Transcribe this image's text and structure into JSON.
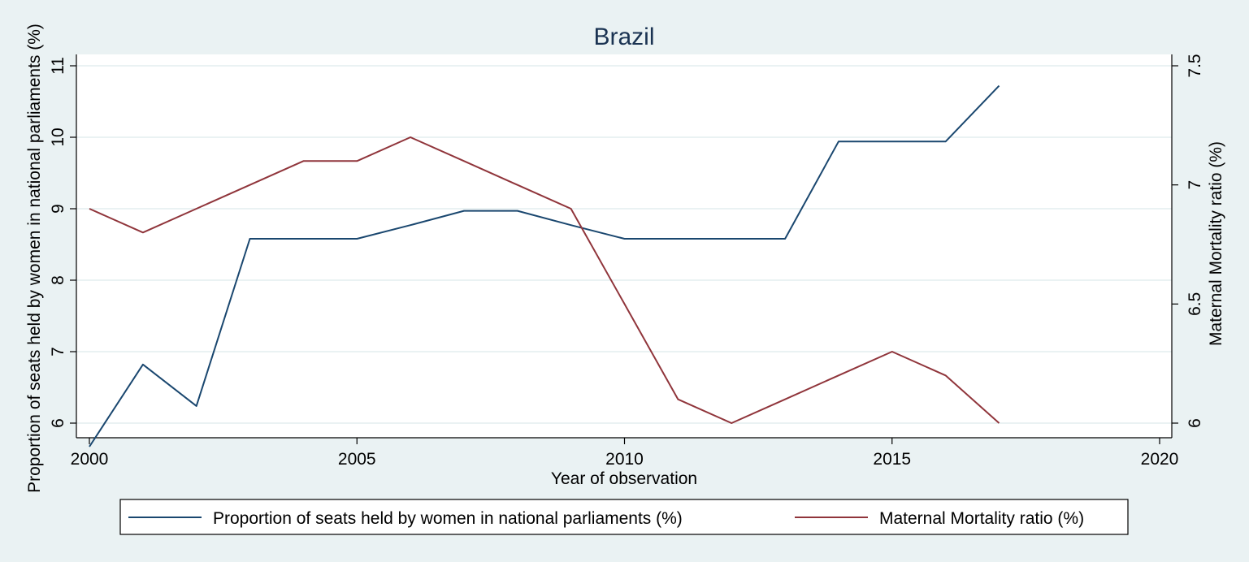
{
  "chart_data": {
    "type": "line",
    "title": "Brazil",
    "xlabel": "Year of observation",
    "ylabel_left": "Proportion of seats held by women in national parliaments (%)",
    "ylabel_right": "Maternal Mortality ratio (%)",
    "xlim": [
      2000,
      2020
    ],
    "ylim_left": [
      5.5,
      11.2
    ],
    "ylim_right": [
      5.97,
      7.53
    ],
    "x_ticks": [
      2000,
      2005,
      2010,
      2015,
      2020
    ],
    "y_ticks_left": [
      6,
      7,
      8,
      9,
      10,
      11
    ],
    "y_ticks_right": [
      6,
      6.5,
      7,
      7.5
    ],
    "grid": true,
    "legend_position": "bottom",
    "series": [
      {
        "name": "Proportion of seats held by women in national parliaments (%)",
        "axis": "left",
        "color": "#1a476f",
        "x": [
          2000,
          2001,
          2002,
          2003,
          2004,
          2005,
          2006,
          2007,
          2008,
          2009,
          2010,
          2011,
          2012,
          2013,
          2014,
          2015,
          2016,
          2017
        ],
        "values": [
          5.67,
          6.82,
          6.24,
          8.58,
          8.58,
          8.58,
          8.77,
          8.97,
          8.97,
          8.77,
          8.58,
          8.58,
          8.58,
          8.58,
          9.94,
          9.94,
          9.94,
          10.72
        ]
      },
      {
        "name": "Maternal Mortality ratio (%)",
        "axis": "right",
        "color": "#90353b",
        "x": [
          2000,
          2001,
          2002,
          2003,
          2004,
          2005,
          2006,
          2007,
          2008,
          2009,
          2010,
          2011,
          2012,
          2013,
          2014,
          2015,
          2016,
          2017
        ],
        "values": [
          6.9,
          6.8,
          6.9,
          7.0,
          7.1,
          7.1,
          7.2,
          7.1,
          7.0,
          6.9,
          6.5,
          6.1,
          6.0,
          6.1,
          6.2,
          6.3,
          6.2,
          6.0
        ]
      }
    ]
  }
}
